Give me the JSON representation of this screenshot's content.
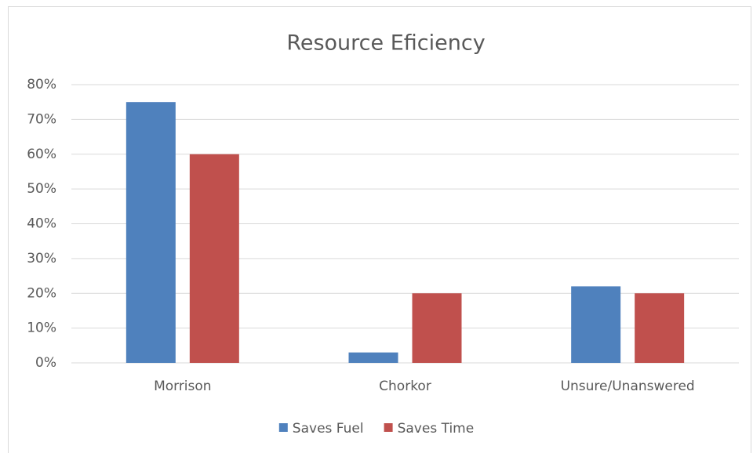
{
  "chart_data": {
    "type": "bar",
    "title": "Resource Eficiency",
    "categories": [
      "Morrison",
      "Chorkor",
      "Unsure/Unanswered"
    ],
    "series": [
      {
        "name": "Saves Fuel",
        "color": "#4f81bd",
        "values": [
          75,
          3,
          22
        ]
      },
      {
        "name": "Saves Time",
        "color": "#c0504d",
        "values": [
          60,
          20,
          20
        ]
      }
    ],
    "ylim": [
      0,
      80
    ],
    "yticks": [
      {
        "value": 0,
        "label": "0%"
      },
      {
        "value": 10,
        "label": "10%"
      },
      {
        "value": 20,
        "label": "20%"
      },
      {
        "value": 30,
        "label": "30%"
      },
      {
        "value": 40,
        "label": "40%"
      },
      {
        "value": 50,
        "label": "50%"
      },
      {
        "value": 60,
        "label": "60%"
      },
      {
        "value": 70,
        "label": "70%"
      },
      {
        "value": 80,
        "label": "80%"
      }
    ],
    "grid": true,
    "legend": "bottom"
  }
}
